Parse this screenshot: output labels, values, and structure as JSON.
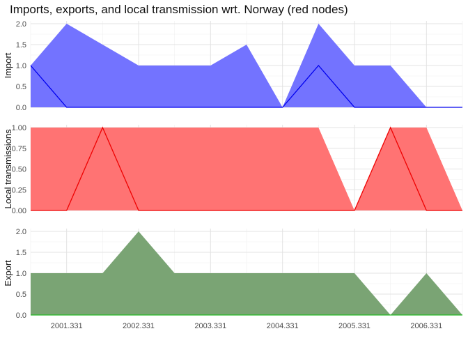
{
  "chart_data": {
    "type": "area",
    "title": "Imports, exports, and local transmission wrt. Norway (red nodes)",
    "x": [
      2000.831,
      2001.331,
      2001.831,
      2002.331,
      2002.831,
      2003.331,
      2003.831,
      2004.331,
      2004.831,
      2005.331,
      2005.831,
      2006.331,
      2006.831
    ],
    "x_ticks": [
      "2001.331",
      "2002.331",
      "2003.331",
      "2004.331",
      "2005.331",
      "2006.331"
    ],
    "xlim": [
      2000.831,
      2006.831
    ],
    "grid": true,
    "panels": [
      {
        "ylabel": "Import",
        "ylim": [
          0,
          2
        ],
        "y_ticks": [
          "0.0",
          "0.5",
          "1.0",
          "1.5",
          "2.0"
        ],
        "area_color": "#7373ff",
        "line_color": "#0000ee",
        "area_values": [
          1,
          2,
          1.5,
          1,
          1,
          1,
          1.5,
          0,
          2,
          1,
          1,
          0,
          0
        ],
        "line_values": [
          1,
          0,
          0,
          0,
          0,
          0,
          0,
          0,
          1,
          0,
          0,
          0,
          0
        ]
      },
      {
        "ylabel": "Local transmissions",
        "ylim": [
          0,
          1
        ],
        "y_ticks": [
          "0.00",
          "0.25",
          "0.50",
          "0.75",
          "1.00"
        ],
        "area_color": "#ff7373",
        "line_color": "#ee0000",
        "area_values": [
          1,
          1,
          1,
          1,
          1,
          1,
          1,
          1,
          1,
          0,
          1,
          1,
          0
        ],
        "line_values": [
          0,
          0,
          1,
          0,
          0,
          0,
          0,
          0,
          0,
          0,
          1,
          0,
          0
        ]
      },
      {
        "ylabel": "Export",
        "ylim": [
          0,
          2
        ],
        "y_ticks": [
          "0.0",
          "0.5",
          "1.0",
          "1.5",
          "2.0"
        ],
        "area_color": "#7aa474",
        "line_color": "#22bb22",
        "area_values": [
          1,
          1,
          1,
          2,
          1,
          1,
          1,
          1,
          1,
          1,
          0,
          1,
          0
        ],
        "line_values": [
          0,
          0,
          0,
          0,
          0,
          0,
          0,
          0,
          0,
          0,
          0,
          0,
          0
        ]
      }
    ]
  }
}
